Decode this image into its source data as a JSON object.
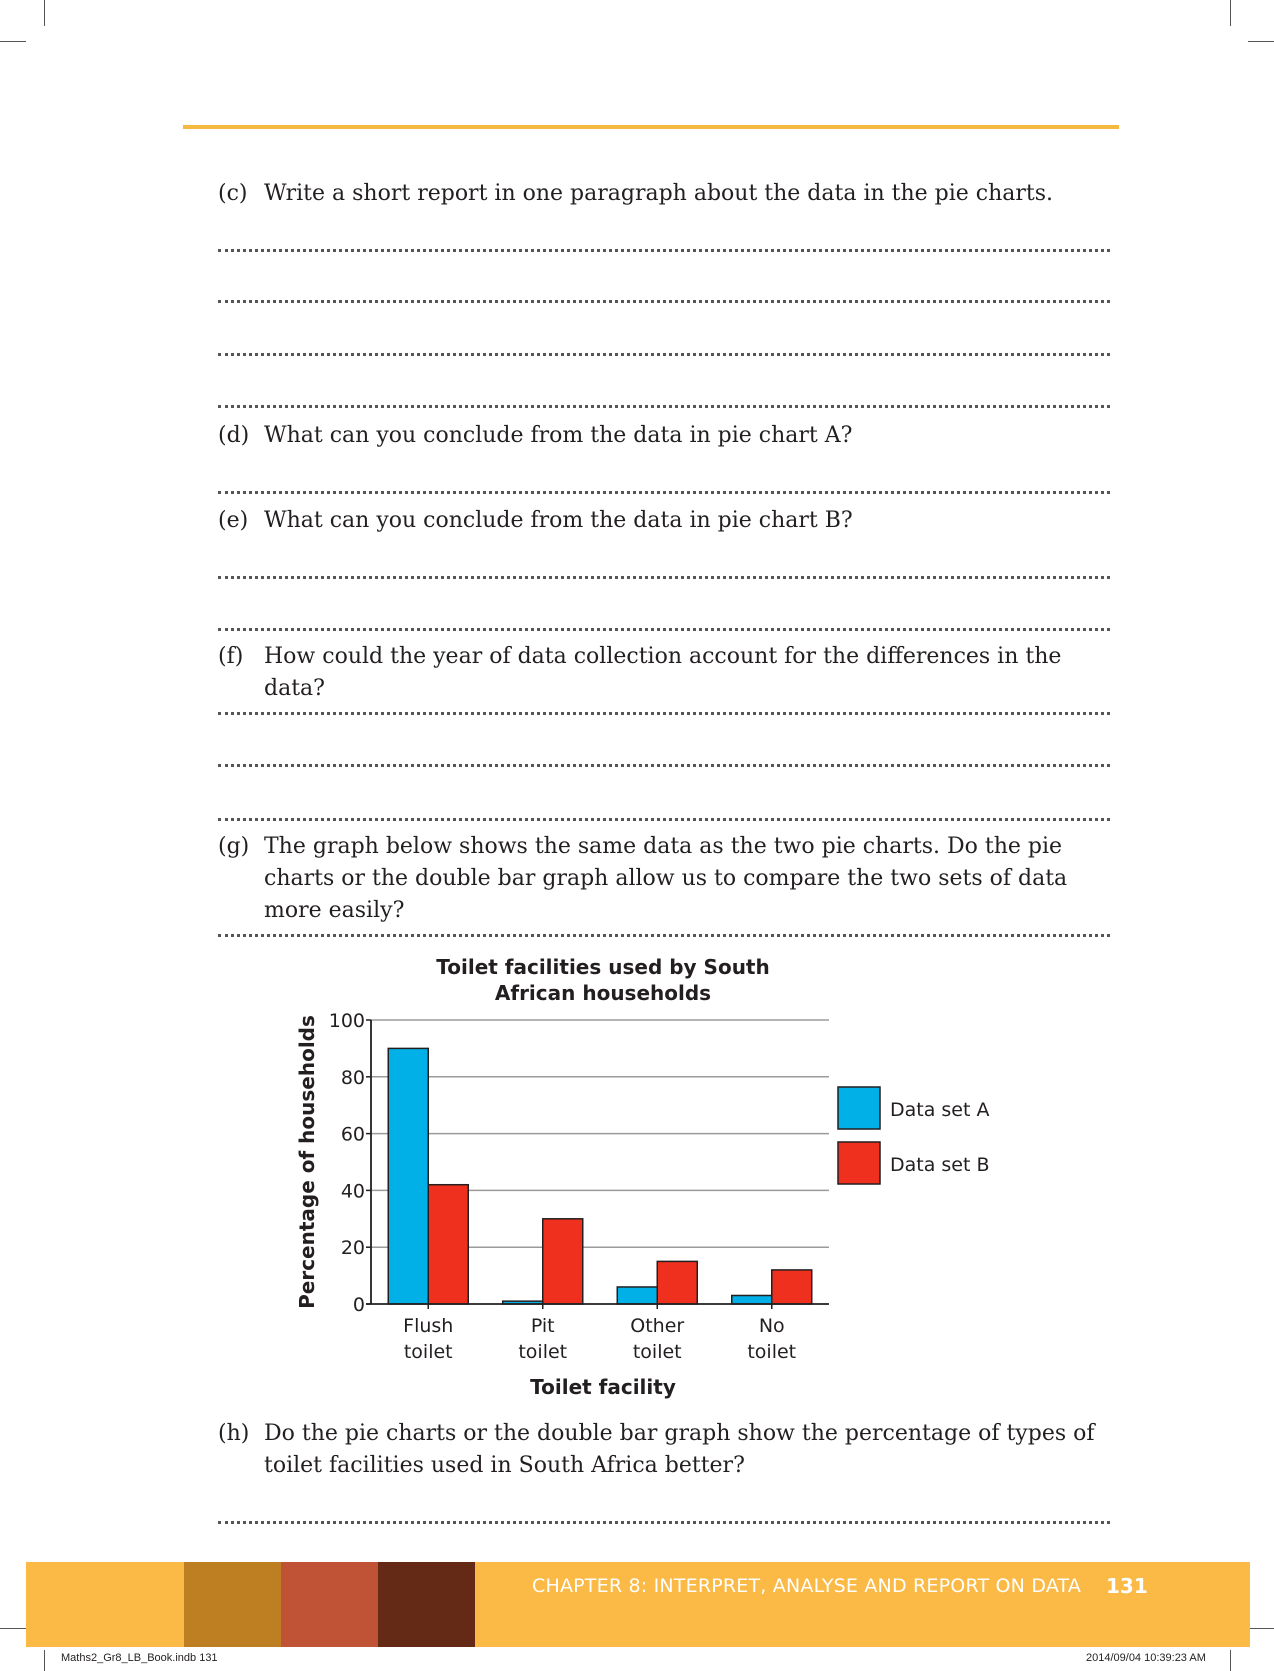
{
  "questions": {
    "c": {
      "label": "(c)",
      "text": "Write a short report in one paragraph about the data in the pie charts."
    },
    "d": {
      "label": "(d)",
      "text": "What can you conclude from the data in pie chart A?"
    },
    "e": {
      "label": "(e)",
      "text": "What can you conclude from the data in pie chart B?"
    },
    "f": {
      "label": "(f)",
      "text": "How could the year of data collection account for the differences in the data?"
    },
    "g": {
      "label": "(g)",
      "text": "The graph below shows the same data as the two pie charts. Do the pie charts or the double bar graph allow us to compare the two sets of data more easily?"
    },
    "h": {
      "label": "(h)",
      "text": "Do the pie charts or the double bar graph show the percentage of types of toilet facilities used in South Africa better?"
    }
  },
  "chart_data": {
    "type": "bar",
    "title_lines": [
      "Toilet facilities used by South",
      "African households"
    ],
    "xlabel": "Toilet facility",
    "ylabel": "Percentage of households",
    "categories": [
      [
        "Flush",
        "toilet"
      ],
      [
        "Pit",
        "toilet"
      ],
      [
        "Other",
        "toilet"
      ],
      [
        "No",
        "toilet"
      ]
    ],
    "series": [
      {
        "name": "Data set A",
        "color": "#00b0e6",
        "values": [
          90,
          1,
          6,
          3
        ]
      },
      {
        "name": "Data set B",
        "color": "#f0301e",
        "values": [
          42,
          30,
          15,
          12
        ]
      }
    ],
    "yticks": [
      0,
      20,
      40,
      60,
      80,
      100
    ],
    "ylim": [
      0,
      100
    ],
    "grid": true,
    "legend_position": "right"
  },
  "footer": {
    "chapter": "CHAPTER 8: INTERPRET, ANALYSE AND REPORT ON DATA",
    "page": "131",
    "colors": [
      "#bd7f22",
      "#c05236",
      "#652a16"
    ]
  },
  "slug": {
    "left": "Maths2_Gr8_LB_Book.indb   131",
    "right": "2014/09/04   10:39:23 AM"
  }
}
